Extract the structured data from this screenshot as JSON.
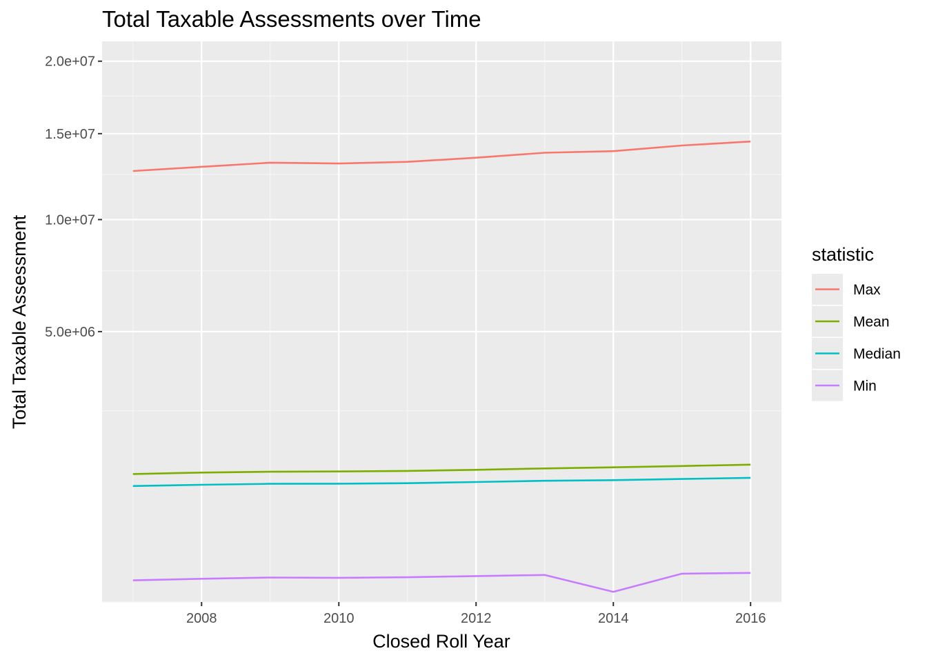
{
  "chart_data": {
    "type": "line",
    "title": "Total Taxable Assessments over Time",
    "xlabel": "Closed Roll Year",
    "ylabel": "Total Taxable Assessment",
    "y_scale": "sqrt",
    "ylim": [
      0,
      21500000
    ],
    "grid": true,
    "legend_title": "statistic",
    "legend_position": "right",
    "x_ticks": [
      "2008",
      "2010",
      "2012",
      "2014",
      "2016"
    ],
    "y_ticks": [
      "5.0e+06",
      "1.0e+07",
      "1.5e+07",
      "2.0e+07"
    ],
    "x": [
      2007,
      2008,
      2009,
      2010,
      2011,
      2012,
      2013,
      2014,
      2015,
      2016
    ],
    "series": [
      {
        "name": "Max",
        "color": "#F8766D",
        "values": [
          12700000,
          12950000,
          13200000,
          13150000,
          13250000,
          13500000,
          13800000,
          13900000,
          14250000,
          14500000
        ]
      },
      {
        "name": "Mean",
        "color": "#7CAE00",
        "values": [
          1120000,
          1145000,
          1160000,
          1165000,
          1175000,
          1195000,
          1220000,
          1240000,
          1265000,
          1290000
        ]
      },
      {
        "name": "Median",
        "color": "#00BFC4",
        "values": [
          920000,
          940000,
          955000,
          958000,
          965000,
          985000,
          1005000,
          1015000,
          1035000,
          1055000
        ]
      },
      {
        "name": "Min",
        "color": "#C77CFF",
        "values": [
          32000,
          37000,
          41000,
          40000,
          42000,
          46000,
          50000,
          7000,
          55000,
          58000
        ]
      }
    ]
  }
}
